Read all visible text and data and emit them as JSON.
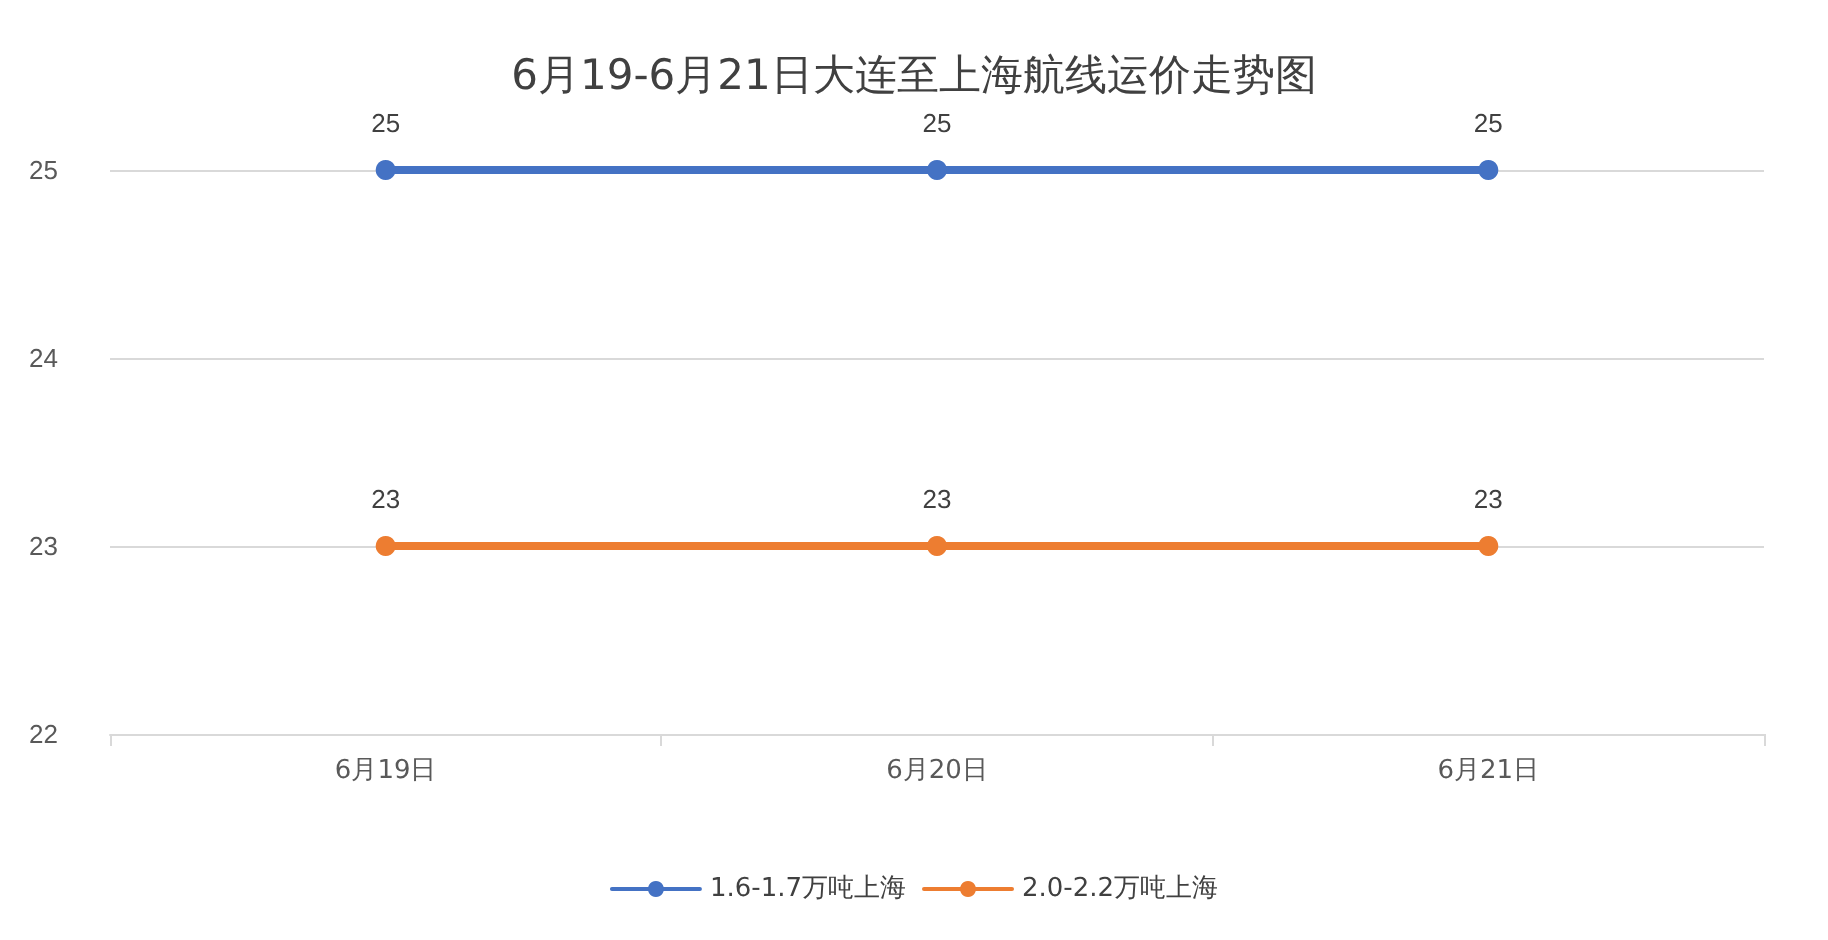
{
  "chart_data": {
    "type": "line",
    "title": "6月19-6月21日大连至上海航线运价走势图",
    "categories": [
      "6月19日",
      "6月20日",
      "6月21日"
    ],
    "series": [
      {
        "name": "1.6-1.7万吨上海",
        "color": "#4472c4",
        "values": [
          25,
          25,
          25
        ]
      },
      {
        "name": "2.0-2.2万吨上海",
        "color": "#ed7d31",
        "values": [
          23,
          23,
          23
        ]
      }
    ],
    "ylim": [
      22,
      25
    ],
    "yticks": [
      22,
      23,
      24,
      25
    ],
    "grid": "y",
    "legend": "bottom",
    "marker": "circle",
    "line_style": "solid",
    "data_labels": true
  }
}
